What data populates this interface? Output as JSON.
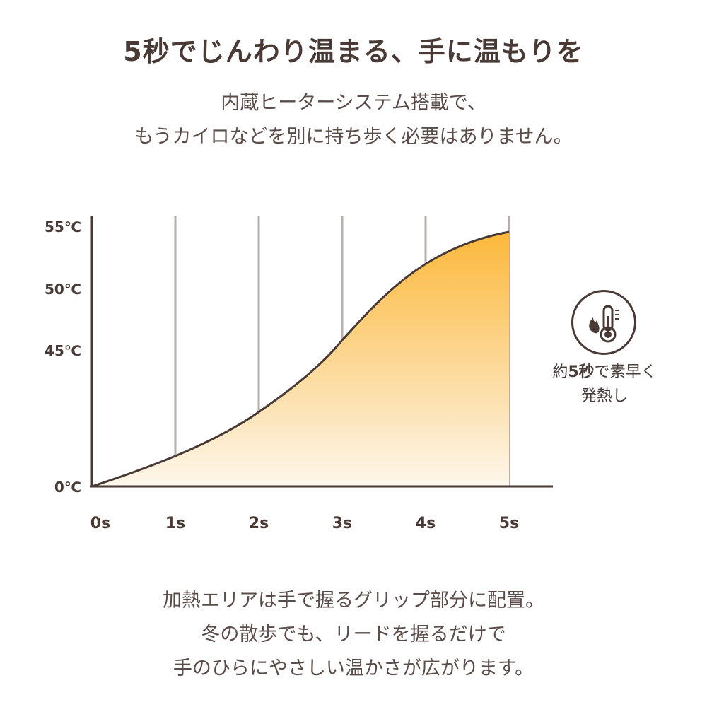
{
  "header": {
    "title": "5秒でじんわり温まる、手に温もりを",
    "subtitle_lines": [
      "内蔵ヒーターシステム搭載で、",
      "もうカイロなどを別に持ち歩く必要はありません。"
    ]
  },
  "chart_data": {
    "type": "area",
    "title": "",
    "xlabel": "",
    "ylabel": "",
    "x_ticks": [
      "0s",
      "1s",
      "2s",
      "3s",
      "4s",
      "5s"
    ],
    "y_ticks": [
      "0℃",
      "45℃",
      "50℃",
      "55℃"
    ],
    "x_unit": "s",
    "xlim": [
      0,
      5
    ],
    "grid": "vertical",
    "series": [
      {
        "x": [
          0,
          1,
          2,
          3,
          4,
          5
        ],
        "y_labels_approx": [
          "0℃",
          "",
          "",
          "45℃",
          "",
          "55℃"
        ]
      }
    ],
    "colors": {
      "fill_top": "#fbb83a",
      "fill_bottom": "#fdf6ec",
      "line": "#4a3a36",
      "grid": "#b7aeae",
      "axis": "#4a3a36"
    }
  },
  "badge": {
    "icon": "thermometer-flame-icon",
    "text_prefix": "約",
    "text_bold": "5秒",
    "text_suffix": "で素早く",
    "text_line2": "発熱し"
  },
  "footer": {
    "lines": [
      "加熱エリアは手で握るグリップ部分に配置。",
      "冬の散歩でも、リードを握るだけで",
      "手のひらにやさしい温かさが広がります。"
    ]
  }
}
